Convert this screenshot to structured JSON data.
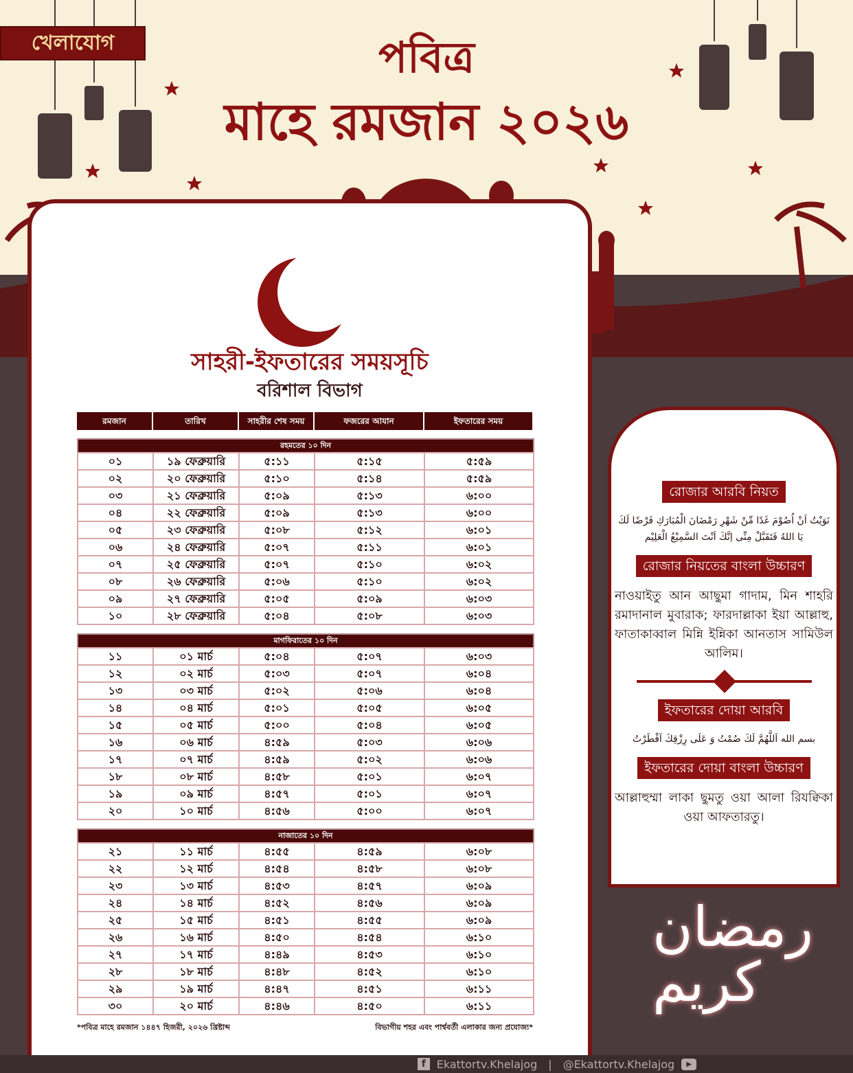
{
  "brand": {
    "logo": "খেলাযোগ"
  },
  "title": {
    "line1": "পবিত্র",
    "line2": "মাহে রমজান ২০২৬"
  },
  "subtitle": {
    "main": "সাহরী-ইফতারের সময়সূচি",
    "division": "বরিশাল বিভাগ"
  },
  "colors": {
    "primary": "#8e1212",
    "dark": "#4a0808",
    "background": "#f8f0d9",
    "ground": "#4b3b3d"
  },
  "table": {
    "headers": [
      "রমজান",
      "তারিখ",
      "সাহরীর শেষ সময়",
      "ফজরের আযান",
      "ইফতারের সময়"
    ],
    "sections": [
      {
        "title": "রহমতের ১০ দিন",
        "rows": [
          [
            "০১",
            "১৯ ফেব্রুয়ারি",
            "৫:১১",
            "৫:১৫",
            "৫:৫৯"
          ],
          [
            "০২",
            "২০ ফেব্রুয়ারি",
            "৫:১০",
            "৫:১৪",
            "৫:৫৯"
          ],
          [
            "০৩",
            "২১ ফেব্রুয়ারি",
            "৫:০৯",
            "৫:১৩",
            "৬:০০"
          ],
          [
            "০৪",
            "২২ ফেব্রুয়ারি",
            "৫:০৯",
            "৫:১৩",
            "৬:০০"
          ],
          [
            "০৫",
            "২৩ ফেব্রুয়ারি",
            "৫:০৮",
            "৫:১২",
            "৬:০১"
          ],
          [
            "০৬",
            "২৪ ফেব্রুয়ারি",
            "৫:০৭",
            "৫:১১",
            "৬:০১"
          ],
          [
            "০৭",
            "২৫ ফেব্রুয়ারি",
            "৫:০৭",
            "৫:১০",
            "৬:০২"
          ],
          [
            "০৮",
            "২৬ ফেব্রুয়ারি",
            "৫:০৬",
            "৫:১০",
            "৬:০২"
          ],
          [
            "০৯",
            "২৭ ফেব্রুয়ারি",
            "৫:০৫",
            "৫:০৯",
            "৬:০৩"
          ],
          [
            "১০",
            "২৮ ফেব্রুয়ারি",
            "৫:০৪",
            "৫:০৮",
            "৬:০৩"
          ]
        ]
      },
      {
        "title": "মাগফিরাতের ১০ দিন",
        "rows": [
          [
            "১১",
            "০১ মার্চ",
            "৫:০৪",
            "৫:০৭",
            "৬:০৩"
          ],
          [
            "১২",
            "০২ মার্চ",
            "৫:০৩",
            "৫:০৭",
            "৬:০৪"
          ],
          [
            "১৩",
            "০৩ মার্চ",
            "৫:০২",
            "৫:০৬",
            "৬:০৪"
          ],
          [
            "১৪",
            "০৪ মার্চ",
            "৫:০১",
            "৫:০৫",
            "৬:০৫"
          ],
          [
            "১৫",
            "০৫ মার্চ",
            "৫:০০",
            "৫:০৪",
            "৬:০৫"
          ],
          [
            "১৬",
            "০৬ মার্চ",
            "৪:৫৯",
            "৫:০৩",
            "৬:০৬"
          ],
          [
            "১৭",
            "০৭ মার্চ",
            "৪:৫৯",
            "৫:০২",
            "৬:০৬"
          ],
          [
            "১৮",
            "০৮ মার্চ",
            "৪:৫৮",
            "৫:০১",
            "৬:০৭"
          ],
          [
            "১৯",
            "০৯ মার্চ",
            "৪:৫৭",
            "৫:০১",
            "৬:০৭"
          ],
          [
            "২০",
            "১০ মার্চ",
            "৪:৫৬",
            "৫:০০",
            "৬:০৭"
          ]
        ]
      },
      {
        "title": "নাজাতের ১০ দিন",
        "rows": [
          [
            "২১",
            "১১ মার্চ",
            "৪:৫৫",
            "৪:৫৯",
            "৬:০৮"
          ],
          [
            "২২",
            "১২ মার্চ",
            "৪:৫৪",
            "৪:৫৮",
            "৬:০৮"
          ],
          [
            "২৩",
            "১৩ মার্চ",
            "৪:৫৩",
            "৪:৫৭",
            "৬:০৯"
          ],
          [
            "২৪",
            "১৪ মার্চ",
            "৪:৫২",
            "৪:৫৬",
            "৬:০৯"
          ],
          [
            "২৫",
            "১৫ মার্চ",
            "৪:৫১",
            "৪:৫৫",
            "৬:০৯"
          ],
          [
            "২৬",
            "১৬ মার্চ",
            "৪:৫০",
            "৪:৫৪",
            "৬:১০"
          ],
          [
            "২৭",
            "১৭ মার্চ",
            "৪:৪৯",
            "৪:৫৩",
            "৬:১০"
          ],
          [
            "২৮",
            "১৮ মার্চ",
            "৪:৪৮",
            "৪:৫২",
            "৬:১০"
          ],
          [
            "২৯",
            "১৯ মার্চ",
            "৪:৪৭",
            "৪:৫১",
            "৬:১১"
          ],
          [
            "৩০",
            "২০ মার্চ",
            "৪:৪৬",
            "৪:৫০",
            "৬:১১"
          ]
        ]
      }
    ]
  },
  "notes": {
    "left": "*পবিত্র মাহে রমজান ১৪৪৭ হিজরী, ২০২৬ খ্রিষ্টাব্দ",
    "right": "বিভাগীয় শহর এবং পার্শ্ববর্তী এলাকার জন্য প্রযোজ্য*"
  },
  "panel": {
    "niyat_ar_title": "রোজার আরবি নিয়ত",
    "niyat_ar": "نَوَيْتُ اَنْ اُصُوْمَ غَدًا مِّنْ شَهْرِ رَمْضَانَ الْمُبَارَكِ فَرْضًا لَكَ يَا اللهُ فَتَقَبَّلْ مِنِّى اِنَّكَ اَنْتَ السَّمِيْعُ الْعَلِيْم",
    "niyat_bn_title": "রোজার নিয়তের বাংলা উচ্চারণ",
    "niyat_bn": "নাওয়াইতু আন আছুমা গাদাম, মিন শাহরি রমাদানাল মুবারাক; ফারদাল্লাকা ইয়া আল্লাহু, ফাতাকাব্বাল মিন্নি ইন্নিকা আনতাস সামিউল আলিম।",
    "iftar_ar_title": "ইফতারের দোয়া আরবি",
    "iftar_ar": "بسم الله اَللَّهُمَّ لَكَ صُمْتُ وَ عَلَى رِزْقِكَ اَفْطَرْتُ",
    "iftar_bn_title": "ইফতারের দোয়া বাংলা উচ্চারণ",
    "iftar_bn": "আল্লাহুম্মা লাকা ছুমতু ওয়া আলা রিযক্বিকা ওয়া আফতারতু।"
  },
  "calligraphy": {
    "ramadan_kareem": "رمضان كريم"
  },
  "footer": {
    "facebook": "Ekattortv.Khelajog",
    "youtube": "@Ekattortv.Khelajog",
    "icons": [
      "facebook-icon",
      "youtube-icon"
    ]
  }
}
